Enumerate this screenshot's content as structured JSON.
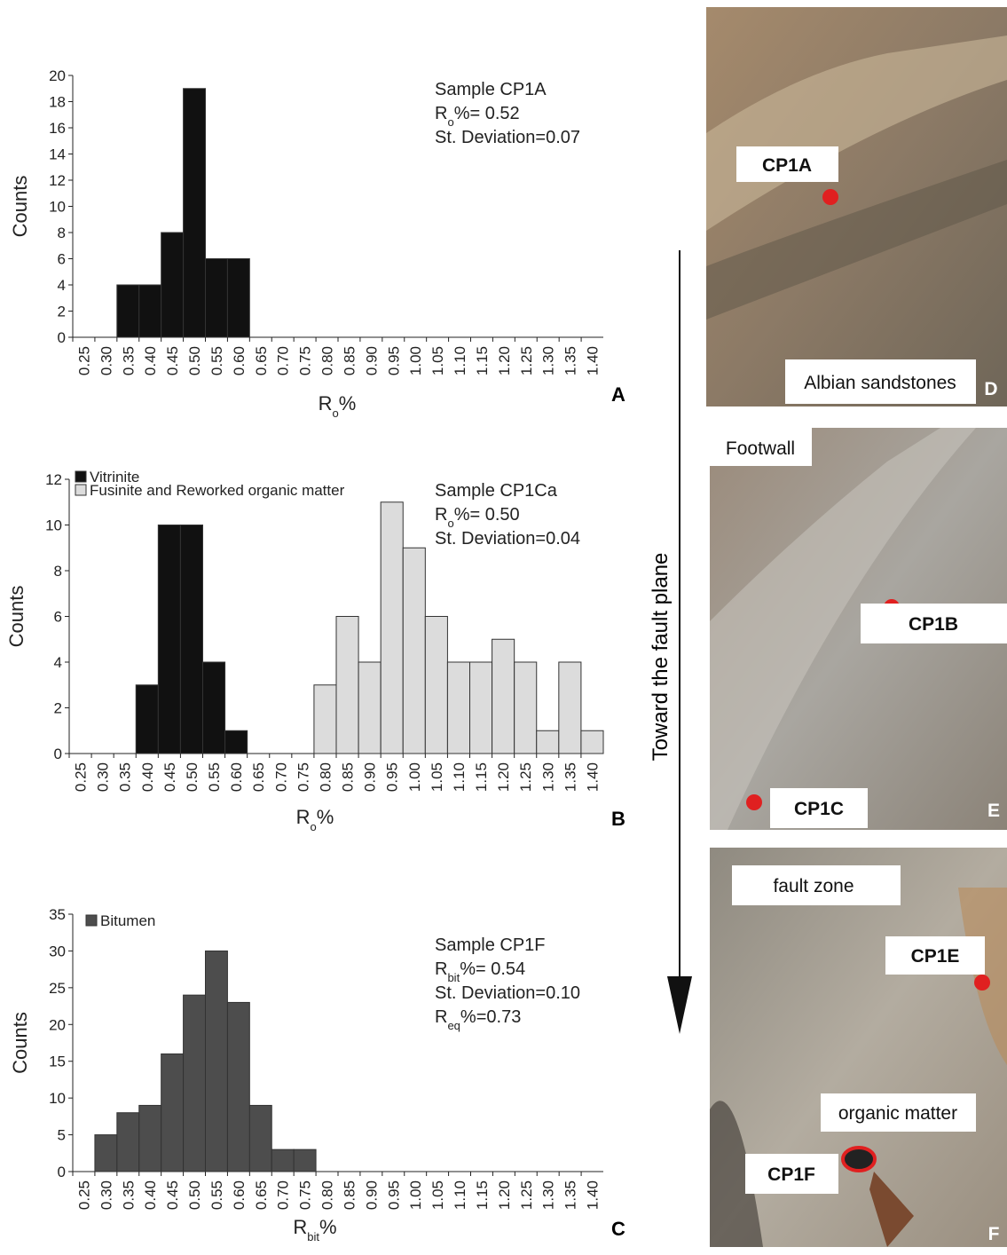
{
  "chart_data": [
    {
      "type": "bar",
      "y_label": "Counts",
      "x_label": {
        "main": "R",
        "sub": "o",
        "rest": "%"
      },
      "panel": "A",
      "annotation": [
        {
          "main": "Sample CP1A"
        },
        {
          "main": "R",
          "sub": "o",
          "rest": "%= 0.52"
        },
        {
          "main": "St. Deviation=0.07"
        }
      ],
      "categories": [
        "0.25",
        "0.30",
        "0.35",
        "0.40",
        "0.45",
        "0.50",
        "0.55",
        "0.60",
        "0.65",
        "0.70",
        "0.75",
        "0.80",
        "0.85",
        "0.90",
        "0.95",
        "1.00",
        "1.05",
        "1.10",
        "1.15",
        "1.20",
        "1.25",
        "1.30",
        "1.35",
        "1.40"
      ],
      "values": [
        0,
        0,
        4,
        4,
        8,
        19,
        6,
        6,
        0,
        0,
        0,
        0,
        0,
        0,
        0,
        0,
        0,
        0,
        0,
        0,
        0,
        0,
        0,
        0
      ],
      "color": "#111111",
      "ylim": [
        0,
        20
      ],
      "yticks": [
        0,
        2,
        4,
        6,
        8,
        10,
        12,
        14,
        16,
        18,
        20
      ]
    },
    {
      "type": "bar",
      "y_label": "Counts",
      "x_label": {
        "main": "R",
        "sub": "o",
        "rest": "%"
      },
      "panel": "B",
      "annotation": [
        {
          "main": "Sample CP1Ca"
        },
        {
          "main": "R",
          "sub": "o",
          "rest": "%= 0.50"
        },
        {
          "main": "St. Deviation=0.04"
        }
      ],
      "categories": [
        "0.25",
        "0.30",
        "0.35",
        "0.40",
        "0.45",
        "0.50",
        "0.55",
        "0.60",
        "0.65",
        "0.70",
        "0.75",
        "0.80",
        "0.85",
        "0.90",
        "0.95",
        "1.00",
        "1.05",
        "1.10",
        "1.15",
        "1.20",
        "1.25",
        "1.30",
        "1.35",
        "1.40"
      ],
      "series": [
        {
          "name": "Vitrinite",
          "color": "#111111",
          "values": [
            0,
            0,
            0,
            3,
            10,
            10,
            4,
            1,
            0,
            0,
            0,
            0,
            0,
            0,
            0,
            0,
            0,
            0,
            0,
            0,
            0,
            0,
            0,
            0
          ]
        },
        {
          "name": "Fusinite and Reworked organic matter",
          "color": "#dcdcdc",
          "values": [
            0,
            0,
            0,
            0,
            0,
            0,
            0,
            0,
            0,
            0,
            0,
            3,
            6,
            4,
            11,
            9,
            6,
            4,
            4,
            5,
            4,
            1,
            4,
            1
          ]
        }
      ],
      "ylim": [
        0,
        12
      ],
      "yticks": [
        0,
        2,
        4,
        6,
        8,
        10,
        12
      ]
    },
    {
      "type": "bar",
      "y_label": "Counts",
      "x_label": {
        "main": "R",
        "sub": "bit",
        "rest": "%"
      },
      "panel": "C",
      "annotation": [
        {
          "main": "Sample CP1F"
        },
        {
          "main": "R",
          "sub": "bit",
          "rest": "%= 0.54"
        },
        {
          "main": "St. Deviation=0.10"
        },
        {
          "main": "R",
          "sub": "eq",
          "rest": "%=0.73"
        }
      ],
      "categories": [
        "0.25",
        "0.30",
        "0.35",
        "0.40",
        "0.45",
        "0.50",
        "0.55",
        "0.60",
        "0.65",
        "0.70",
        "0.75",
        "0.80",
        "0.85",
        "0.90",
        "0.95",
        "1.00",
        "1.05",
        "1.10",
        "1.15",
        "1.20",
        "1.25",
        "1.30",
        "1.35",
        "1.40"
      ],
      "series": [
        {
          "name": "Bitumen",
          "color": "#4d4d4d",
          "values": [
            0,
            5,
            8,
            9,
            16,
            24,
            30,
            23,
            9,
            3,
            3,
            0,
            0,
            0,
            0,
            0,
            0,
            0,
            0,
            0,
            0,
            0,
            0,
            0
          ]
        }
      ],
      "ylim": [
        0,
        35
      ],
      "yticks": [
        0,
        5,
        10,
        15,
        20,
        25,
        30,
        35
      ]
    }
  ],
  "arrow_label": "Toward the fault plane",
  "photos": [
    {
      "letter": "D",
      "labels": [
        "CP1A",
        "Albian sandstones"
      ]
    },
    {
      "letter": "E",
      "labels": [
        "Footwall",
        "CP1B",
        "CP1C"
      ]
    },
    {
      "letter": "F",
      "labels": [
        "fault zone",
        "CP1E",
        "organic matter",
        "CP1F"
      ]
    }
  ]
}
